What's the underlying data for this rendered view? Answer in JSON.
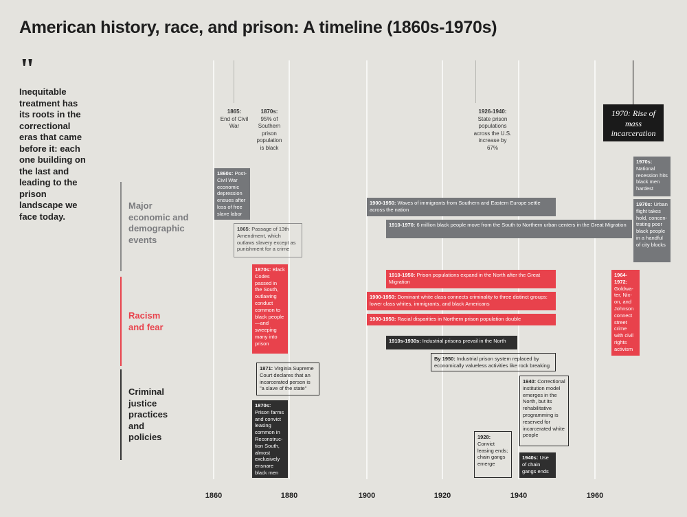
{
  "title": "American history, race, and prison: A timeline (1860s-1970s)",
  "quote_mark": "\"",
  "quote": "Inequitable treatment has its roots in the correctional eras that came before it: each one building on the last and leading to the prison landscape we face today.",
  "categories": {
    "economic": "Major economic and demographic events",
    "racism": "Racism and fear",
    "justice": "Criminal justice practices and policies"
  },
  "colors": {
    "economic": "#75777a",
    "racism": "#e8424c",
    "justice": "#2f2f2f",
    "background": "#e4e3de"
  },
  "axis": {
    "ticks": [
      "1860",
      "1880",
      "1900",
      "1920",
      "1940",
      "1960"
    ]
  },
  "annotations": {
    "a1865": {
      "label": "1865:",
      "text": "End of Civil War"
    },
    "a1870s": {
      "label": "1870s:",
      "text": "95% of Southern prison population is black"
    },
    "a1926": {
      "label": "1926-1940:",
      "text": "State prison populations across the U.S. increase by 67%"
    },
    "a1970": "1970: Rise of mass incarceration"
  },
  "events": {
    "e1": {
      "label": "1860s:",
      "text": " Post-Civil War economic depression ensues after loss of free slave labor"
    },
    "e2": {
      "label": "1865:",
      "text": " Passage of 13th Amendment, which outlaws slavery except as punishment for a crime"
    },
    "e3": {
      "label": "1900-1950:",
      "text": " Waves of immigrants from Southern and Eastern Europe settle across the nation"
    },
    "e4": {
      "label": "1910-1970:",
      "text": " 6 million black people move from the South to Northern urban centers in the Great Migration"
    },
    "e5": {
      "label": "1970s:",
      "text": " National recession hits black men hardest"
    },
    "e6": {
      "label": "1970s:",
      "text": " Urban flight takes hold, concen-trating poor black people in a handful of city blocks"
    },
    "r1": {
      "label": "1870s:",
      "text": " Black Codes passed in the South, outlawing conduct common to black people—and sweeping many into prison"
    },
    "r2": {
      "label": "1910-1950:",
      "text": " Prison populations expand in the North after the Great Migration"
    },
    "r3": {
      "label": "1900-1950:",
      "text": " Dominant white class connects criminality to three distinct groups: lower class whites, immigrants, and black Americans"
    },
    "r4": {
      "label": "1900-1950:",
      "text": " Racial disparities in Northern prison population double"
    },
    "r5": {
      "label": "1964-1972:",
      "text": " Goldwa-ter, Nix-on, and Johnson connect street crime with civil rights activism"
    },
    "c1": {
      "label": "1910s-1930s:",
      "text": " Industrial prisons prevail in the North"
    },
    "c2": {
      "label": "By 1950:",
      "text": " Industrial prison system replaced by economically valueless activities like rock breaking"
    },
    "c3": {
      "label": "1871:",
      "text": " Virginia Supreme Court declares that an incarcerated person is \"a slave of the state\""
    },
    "c4": {
      "label": "1940:",
      "text": " Correctional institution model emerges in the North, but its rehabilitative programming is reserved for incarcerated white people"
    },
    "c5": {
      "label": "1870s:",
      "text": " Prison farms and convict leasing common in Reconstruc-tion South, almost exclusively ensnare black men"
    },
    "c6": {
      "label": "1928:",
      "text": " Convict leasing ends; chain gangs emerge"
    },
    "c7": {
      "label": "1940s:",
      "text": " Use of chain gangs ends"
    }
  }
}
